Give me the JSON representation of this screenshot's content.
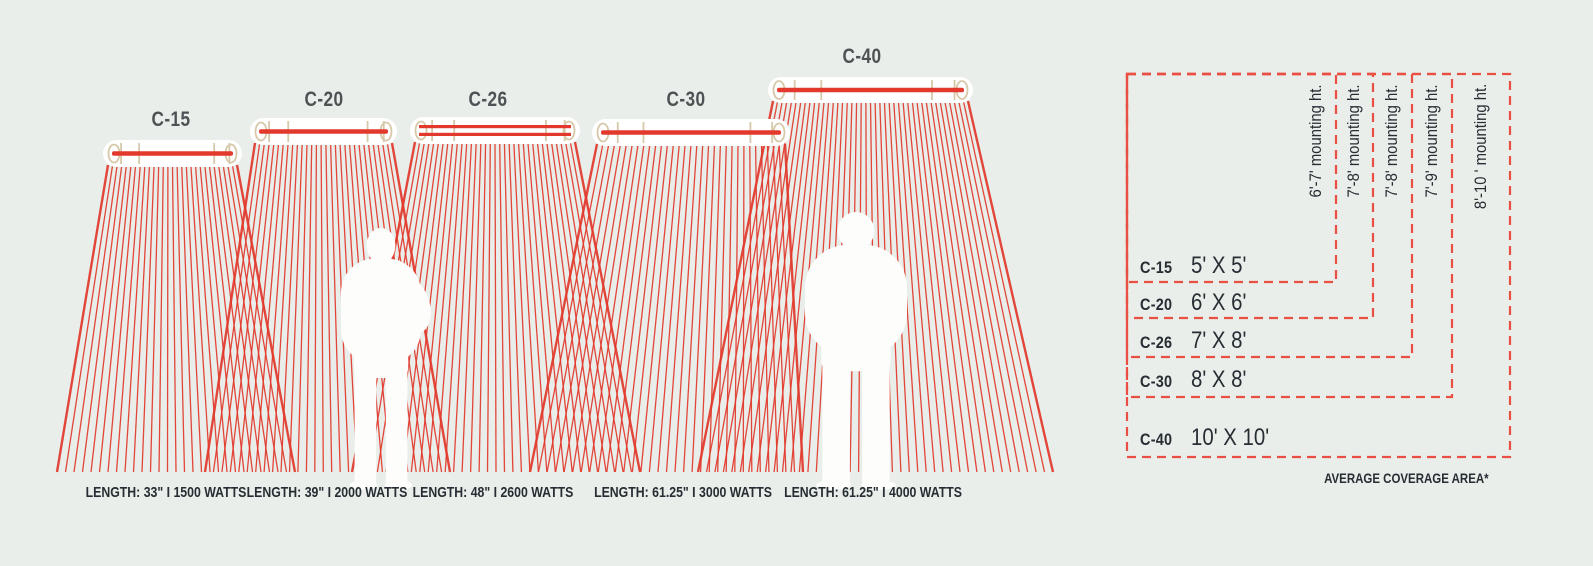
{
  "colors": {
    "background": "#e9eeea",
    "heat_red": "#e2392c",
    "dashed_red": "#ea4f44",
    "bracket_beige": "#d6c8a8",
    "heading_gray": "#4d5254",
    "text_dark": "#262d33",
    "silhouette_white": "#fdfdfc"
  },
  "heaters": [
    {
      "model": "C-15",
      "spec": "LENGTH: 33\" I 1500 WATTS",
      "coverage": "5' X 5'",
      "mounting": "6'-7' mounting ht."
    },
    {
      "model": "C-20",
      "spec": "LENGTH: 39\" I 2000 WATTS",
      "coverage": "6' X 6'",
      "mounting": "7'-8' mounting ht."
    },
    {
      "model": "C-26",
      "spec": "LENGTH: 48\" I 2600 WATTS",
      "coverage": "7' X 8'",
      "mounting": "7'-8' mounting ht."
    },
    {
      "model": "C-30",
      "spec": "LENGTH: 61.25\" I 3000 WATTS",
      "coverage": "8' X 8'",
      "mounting": "7'-9' mounting ht."
    },
    {
      "model": "C-40",
      "spec": "LENGTH: 61.25\" I 4000 WATTS",
      "coverage": "10' X 10'",
      "mounting": "8'-10 ' mounting ht."
    }
  ],
  "coverage_table": {
    "footnote": "AVERAGE COVERAGE AREA*"
  },
  "icons": {
    "small_person": "person-silhouette",
    "large_person": "person-silhouette",
    "heater": "infrared-heater-unit",
    "fan": "heat-spread-lines"
  }
}
